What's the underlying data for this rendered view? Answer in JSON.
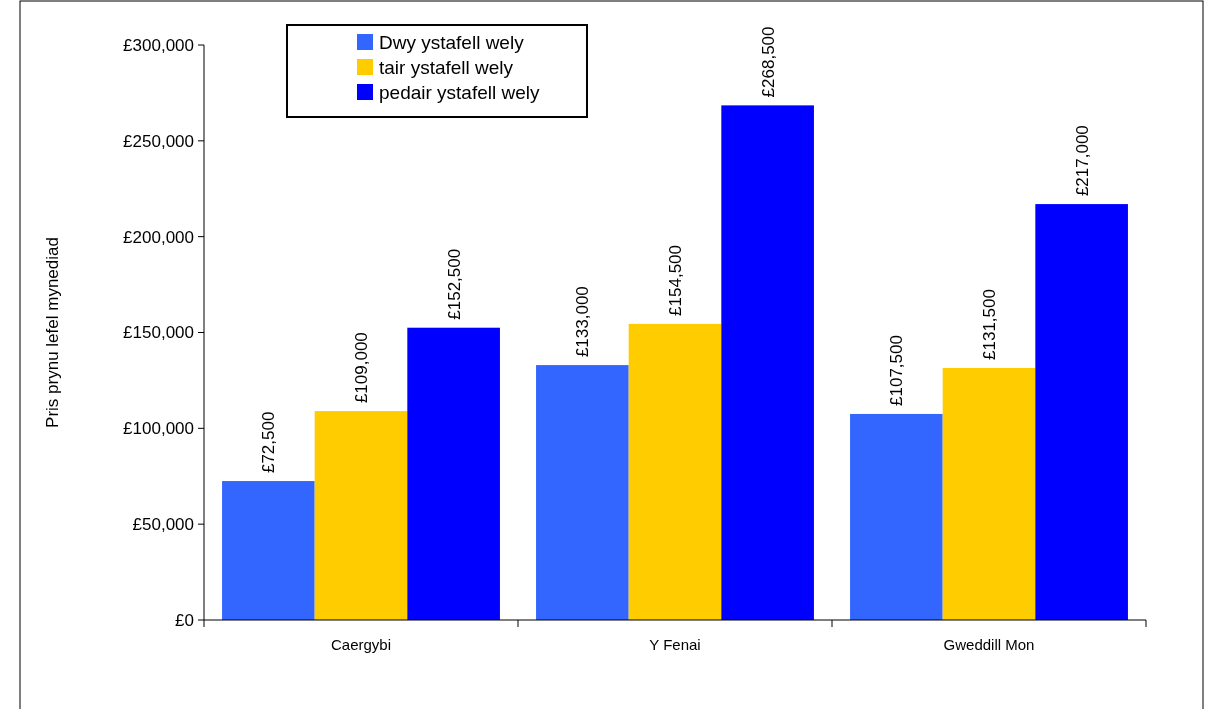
{
  "chart_data": {
    "type": "bar",
    "ylabel": "Pris prynu lefel mynediad",
    "categories": [
      "Caergybi",
      "Y Fenai",
      "Gweddill Mon"
    ],
    "series": [
      {
        "name": "Dwy ystafell wely",
        "color": "#3366ff",
        "values": [
          72500,
          133000,
          107500
        ],
        "value_labels": [
          "£72,500",
          "£133,000",
          "£107,500"
        ]
      },
      {
        "name": "tair ystafell wely",
        "color": "#ffcc00",
        "values": [
          109000,
          154500,
          131500
        ],
        "value_labels": [
          "£109,000",
          "£154,500",
          "£131,500"
        ]
      },
      {
        "name": "pedair ystafell wely",
        "color": "#0000ff",
        "values": [
          152500,
          268500,
          217000
        ],
        "value_labels": [
          "£152,500",
          "£268,500",
          "£217,000"
        ]
      }
    ],
    "ylim": [
      0,
      300000
    ],
    "yticks": [
      {
        "value": 0,
        "label": "£0"
      },
      {
        "value": 50000,
        "label": "£50,000"
      },
      {
        "value": 100000,
        "label": "£100,000"
      },
      {
        "value": 150000,
        "label": "£150,000"
      },
      {
        "value": 200000,
        "label": "£200,000"
      },
      {
        "value": 250000,
        "label": "£250,000"
      },
      {
        "value": 300000,
        "label": "£300,000"
      }
    ],
    "grid": false,
    "legend": "top left"
  }
}
